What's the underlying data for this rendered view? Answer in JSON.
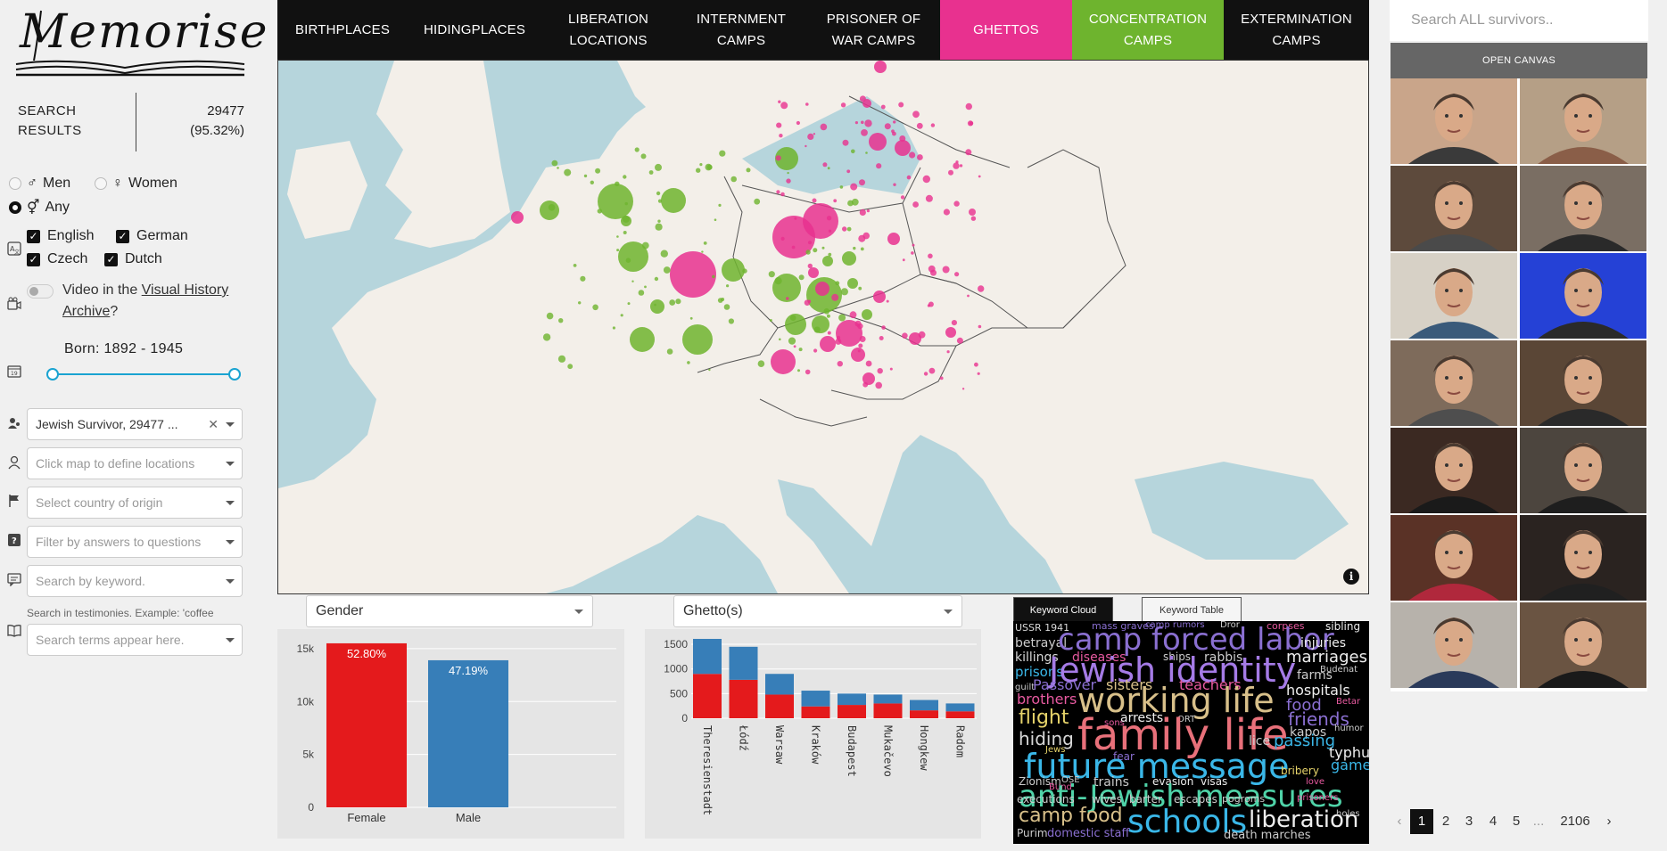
{
  "app": {
    "logo_text": "Memorise"
  },
  "stats": {
    "label": "SEARCH RESULTS",
    "count": "29477",
    "percent": "(95.32%)"
  },
  "gender_filter": {
    "men": "Men",
    "women": "Women",
    "any": "Any",
    "selected": "Any"
  },
  "languages": [
    {
      "label": "English",
      "checked": true
    },
    {
      "label": "German",
      "checked": true
    },
    {
      "label": "Czech",
      "checked": true
    },
    {
      "label": "Dutch",
      "checked": true
    }
  ],
  "vha": {
    "prefix": "Video in the ",
    "link": "Visual History Archive",
    "suffix": "?"
  },
  "born": {
    "label": "Born: 1892 - 1945"
  },
  "filters": {
    "survivor_type": "Jewish Survivor, 29477 ...",
    "location_placeholder": "Click map to define locations",
    "country_placeholder": "Select country of origin",
    "answers_placeholder": "Filter by answers to questions",
    "keyword_placeholder": "Search by keyword.",
    "testimony_hint": "Search in testimonies. Example: 'coffee",
    "terms_placeholder": "Search terms appear here."
  },
  "nav": {
    "items": [
      {
        "label": "BIRTHPLACES",
        "style": ""
      },
      {
        "label": "HIDINGPLACES",
        "style": ""
      },
      {
        "label": "LIBERATION LOCATIONS",
        "style": ""
      },
      {
        "label": "INTERNMENT CAMPS",
        "style": ""
      },
      {
        "label": "PRISONER OF WAR CAMPS",
        "style": ""
      },
      {
        "label": "GHETTOS",
        "style": "pink"
      },
      {
        "label": "CONCENTRATION CAMPS",
        "style": "green"
      },
      {
        "label": "EXTERMINATION CAMPS",
        "style": ""
      }
    ],
    "colors": {
      "ghettos": "#e8318f",
      "concentration": "#6eb42e"
    }
  },
  "map": {
    "info_icon": "info-icon"
  },
  "gender_chart": {
    "dropdown": "Gender",
    "chart_data": {
      "type": "bar",
      "categories": [
        "Female",
        "Male"
      ],
      "values": [
        15500,
        13900
      ],
      "data_labels": [
        "52.80%",
        "47.19%"
      ],
      "colors": [
        "#e41a1c",
        "#377eb8"
      ],
      "ylim": [
        0,
        16000
      ],
      "yticks": [
        "0",
        "5k",
        "10k",
        "15k"
      ]
    }
  },
  "ghetto_chart": {
    "dropdown": "Ghetto(s)",
    "chart_data": {
      "type": "bar",
      "stacked": true,
      "categories": [
        "Theresienstadt",
        "Łódź",
        "Warsaw",
        "Kraków",
        "Budapest",
        "Mukačevo",
        "Hongkew",
        "Radom"
      ],
      "series": [
        {
          "color": "#e41a1c",
          "values": [
            900,
            780,
            480,
            240,
            270,
            300,
            160,
            140
          ]
        },
        {
          "color": "#377eb8",
          "values": [
            710,
            670,
            420,
            320,
            230,
            180,
            210,
            160
          ]
        }
      ],
      "ylim": [
        0,
        1700
      ],
      "yticks": [
        "0",
        "500",
        "1000",
        "1500"
      ]
    }
  },
  "keywords": {
    "tab_cloud": "Keyword Cloud",
    "tab_table": "Keyword Table",
    "cloud": [
      {
        "t": "USSR 1941",
        "c": "#d9d9d9",
        "s": 11
      },
      {
        "t": "mass graves",
        "c": "#8a6fd1",
        "s": 11
      },
      {
        "t": "camp rumors",
        "c": "#8a6fd1",
        "s": 10
      },
      {
        "t": "Dror",
        "c": "#ccc",
        "s": 10
      },
      {
        "t": "corpses",
        "c": "#e85aa0",
        "s": 11
      },
      {
        "t": "sibling",
        "c": "#eee",
        "s": 12
      },
      {
        "t": "betrayal",
        "c": "#ccc",
        "s": 14
      },
      {
        "t": "camp forced labor",
        "c": "#8a6fd1",
        "s": 34
      },
      {
        "t": "injuries",
        "c": "#eee",
        "s": 14
      },
      {
        "t": "killings",
        "c": "#d8d8d8",
        "s": 14
      },
      {
        "t": "diseases",
        "c": "#e85aa0",
        "s": 14
      },
      {
        "t": "ships",
        "c": "#ccc",
        "s": 12
      },
      {
        "t": "rabbis",
        "c": "#ccc",
        "s": 14
      },
      {
        "t": "marriages",
        "c": "#eee",
        "s": 18
      },
      {
        "t": "prisons",
        "c": "#3ab7e8",
        "s": 15
      },
      {
        "t": "Jewish identity",
        "c": "#a57be6",
        "s": 38
      },
      {
        "t": "Budenat",
        "c": "#ccc",
        "s": 10
      },
      {
        "t": "farms",
        "c": "#ccc",
        "s": 14
      },
      {
        "t": "guilt",
        "c": "#ccc",
        "s": 10
      },
      {
        "t": "Passover",
        "c": "#8a6fd1",
        "s": 16
      },
      {
        "t": "sisters",
        "c": "#d8c08a",
        "s": 16
      },
      {
        "t": "teachers",
        "c": "#e85aa0",
        "s": 16
      },
      {
        "t": "hospitals",
        "c": "#eee",
        "s": 16
      },
      {
        "t": "brothers",
        "c": "#e85aa0",
        "s": 16
      },
      {
        "t": "working life",
        "c": "#d8c08a",
        "s": 38
      },
      {
        "t": "food",
        "c": "#8a6fd1",
        "s": 18
      },
      {
        "t": "Betar",
        "c": "#e85aa0",
        "s": 10
      },
      {
        "t": "flight",
        "c": "#e6d36a",
        "s": 22
      },
      {
        "t": "sons",
        "c": "#e85aa0",
        "s": 10
      },
      {
        "t": "arrests",
        "c": "#eee",
        "s": 14
      },
      {
        "t": "ORT",
        "c": "#ccc",
        "s": 10
      },
      {
        "t": "friends",
        "c": "#8a6fd1",
        "s": 20
      },
      {
        "t": "family life",
        "c": "#e8707a",
        "s": 48
      },
      {
        "t": "kapos",
        "c": "#ccc",
        "s": 14
      },
      {
        "t": "humor",
        "c": "#ccc",
        "s": 10
      },
      {
        "t": "hiding",
        "c": "#d8d8d8",
        "s": 20
      },
      {
        "t": "lice",
        "c": "#ccc",
        "s": 14
      },
      {
        "t": "passing",
        "c": "#3ab7e8",
        "s": 18
      },
      {
        "t": "Jews",
        "c": "#e6d36a",
        "s": 10
      },
      {
        "t": "fear",
        "c": "#8a6fd1",
        "s": 12
      },
      {
        "t": "typhus",
        "c": "#eee",
        "s": 16
      },
      {
        "t": "future message",
        "c": "#3ab7e8",
        "s": 38
      },
      {
        "t": "games",
        "c": "#3ab7e8",
        "s": 16
      },
      {
        "t": "Zionism",
        "c": "#ccc",
        "s": 12
      },
      {
        "t": "OSE",
        "c": "#ccc",
        "s": 10
      },
      {
        "t": "trains",
        "c": "#ccc",
        "s": 14
      },
      {
        "t": "evasion",
        "c": "#eee",
        "s": 12
      },
      {
        "t": "visas",
        "c": "#eee",
        "s": 12
      },
      {
        "t": "bribery",
        "c": "#e6d36a",
        "s": 12
      },
      {
        "t": "Bund",
        "c": "#e85aa0",
        "s": 10
      },
      {
        "t": "love",
        "c": "#e85aa0",
        "s": 10
      },
      {
        "t": "anti-Jewish measures",
        "c": "#4fd3a8",
        "s": 34
      },
      {
        "t": "executions",
        "c": "#ccc",
        "s": 12
      },
      {
        "t": "wives",
        "c": "#ccc",
        "s": 12
      },
      {
        "t": "barter",
        "c": "#ccc",
        "s": 12
      },
      {
        "t": "escapes",
        "c": "#ccc",
        "s": 12
      },
      {
        "t": "pogroms",
        "c": "#ccc",
        "s": 11
      },
      {
        "t": "prisoners",
        "c": "#e85aa0",
        "s": 10
      },
      {
        "t": "camp food",
        "c": "#d8c08a",
        "s": 22
      },
      {
        "t": "schools",
        "c": "#3ab7e8",
        "s": 36
      },
      {
        "t": "liberation",
        "c": "#eee",
        "s": 26
      },
      {
        "t": "holes",
        "c": "#ccc",
        "s": 10
      },
      {
        "t": "Purim",
        "c": "#ccc",
        "s": 12
      },
      {
        "t": "domestic staff",
        "c": "#8a6fd1",
        "s": 13
      },
      {
        "t": "death marches",
        "c": "#ccc",
        "s": 13
      }
    ]
  },
  "right_panel": {
    "search_placeholder": "Search ALL survivors..",
    "open_canvas": "OPEN CANVAS",
    "thumbnails": [
      {
        "bg": "#c9a58a",
        "shirt": "#3a3a3a"
      },
      {
        "bg": "#b59f86",
        "shirt": "#8a5e48"
      },
      {
        "bg": "#5d4a3c",
        "shirt": "#4a4a4a"
      },
      {
        "bg": "#7a6e63",
        "shirt": "#2a2a2a"
      },
      {
        "bg": "#d7d1c6",
        "shirt": "#3a5a7a"
      },
      {
        "bg": "#2541d6",
        "shirt": "#2a2a2a"
      },
      {
        "bg": "#7e6b5b",
        "shirt": "#4e4e4e"
      },
      {
        "bg": "#5a4636",
        "shirt": "#2a2a2a"
      },
      {
        "bg": "#3b2922",
        "shirt": "#1a1a1a"
      },
      {
        "bg": "#4c453e",
        "shirt": "#1e1e1e"
      },
      {
        "bg": "#5a3226",
        "shirt": "#b0283c"
      },
      {
        "bg": "#2a2320",
        "shirt": "#202020"
      },
      {
        "bg": "#b7b2ab",
        "shirt": "#2a3a5a"
      },
      {
        "bg": "#6a5442",
        "shirt": "#1a1a1a"
      }
    ]
  },
  "pagination": {
    "prev": "‹",
    "pages": [
      "1",
      "2",
      "3",
      "4",
      "5"
    ],
    "ellipsis": "...",
    "last": "2106",
    "next": "›",
    "active": "1"
  }
}
